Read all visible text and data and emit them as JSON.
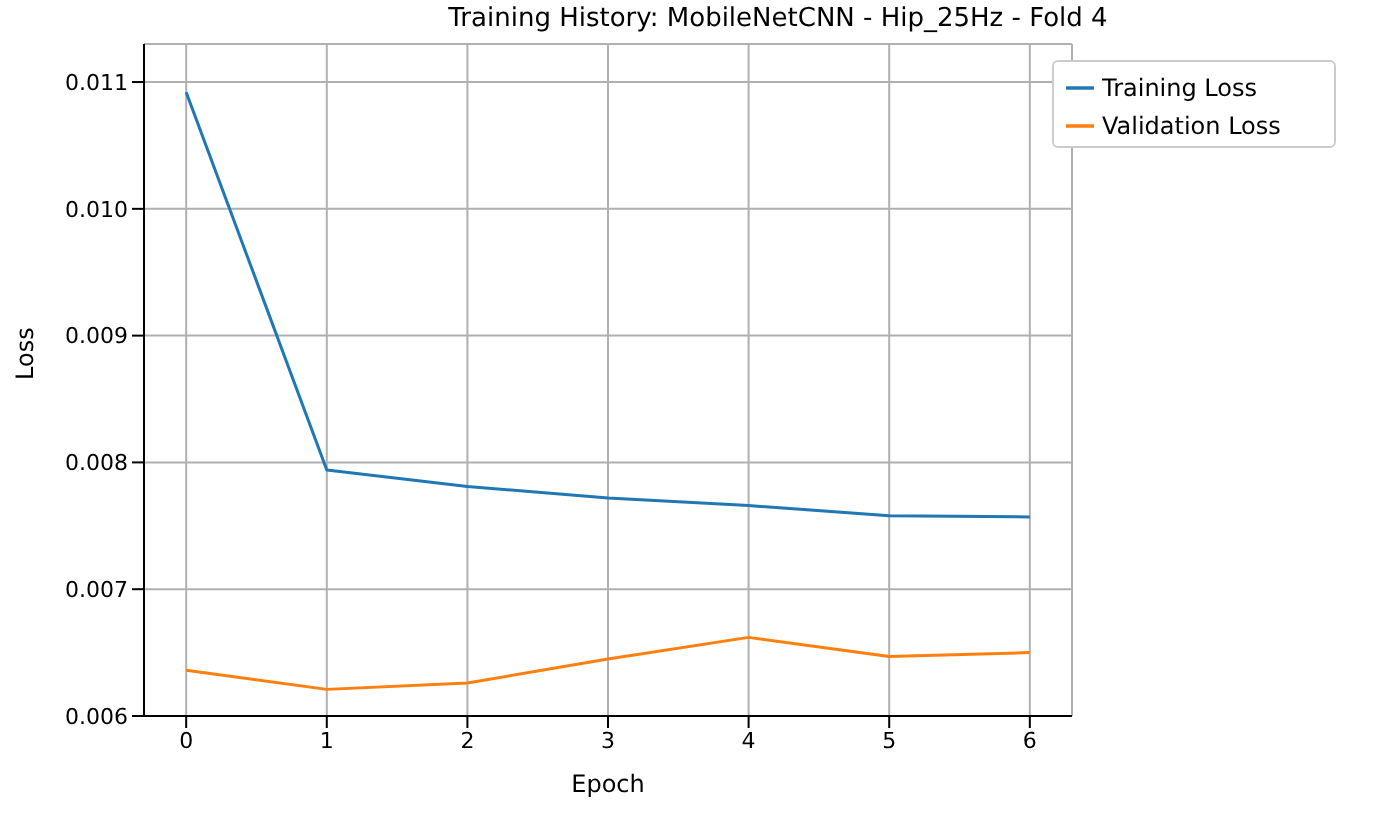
{
  "chart_data": {
    "type": "line",
    "title": "Training History: MobileNetCNN - Hip_25Hz - Fold 4",
    "xlabel": "Epoch",
    "ylabel": "Loss",
    "x": [
      0,
      1,
      2,
      3,
      4,
      5,
      6
    ],
    "series": [
      {
        "name": "Training Loss",
        "color": "#1f77b4",
        "values": [
          0.01092,
          0.00794,
          0.00781,
          0.00772,
          0.00766,
          0.00758,
          0.00757
        ]
      },
      {
        "name": "Validation Loss",
        "color": "#ff7f0e",
        "values": [
          0.00636,
          0.00621,
          0.00626,
          0.00645,
          0.00662,
          0.00647,
          0.0065
        ]
      }
    ],
    "xlim": [
      -0.3,
      6.3
    ],
    "xticks": [
      0,
      1,
      2,
      3,
      4,
      5,
      6
    ],
    "ylim": [
      0.006,
      0.0113
    ],
    "yticks": [
      0.006,
      0.007,
      0.008,
      0.009,
      {
        "value": 0.01,
        "label": "0.010"
      },
      0.011
    ],
    "grid": true,
    "legend": "top right",
    "marker": "none",
    "line_style": "solid"
  }
}
